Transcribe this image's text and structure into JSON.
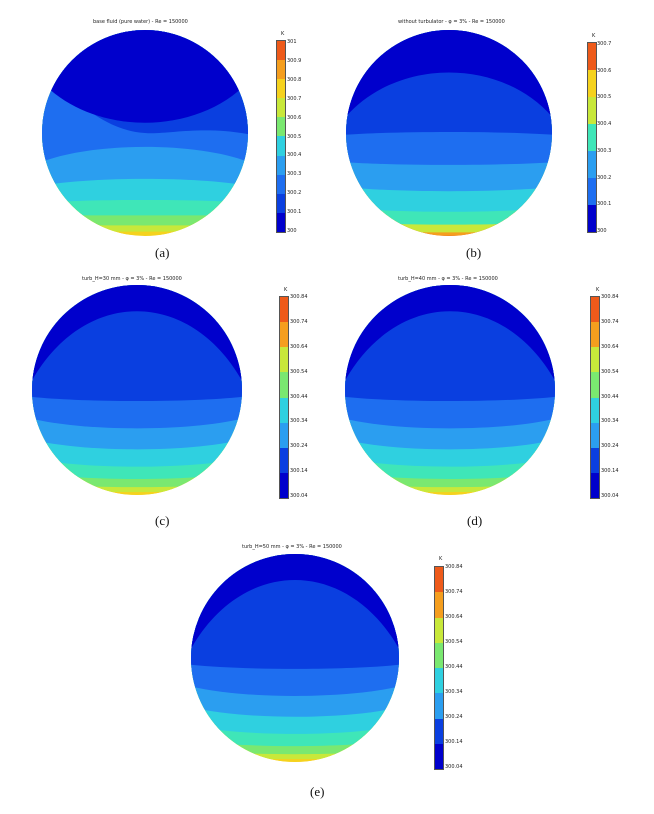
{
  "panels": [
    {
      "title": "base fluid (pure water)  -  Re = 150000",
      "caption": "(a)",
      "unit": "K",
      "ticks": [
        "301",
        "300.9",
        "300.8",
        "300.7",
        "300.6",
        "300.5",
        "300.4",
        "300.3",
        "300.2",
        "300.1",
        "300"
      ]
    },
    {
      "title": "without turbulator  -  φ = 3%  -  Re = 150000",
      "caption": "(b)",
      "unit": "K",
      "ticks": [
        "300.7",
        "300.6",
        "300.5",
        "300.4",
        "300.3",
        "300.2",
        "300.1",
        "300"
      ]
    },
    {
      "title": "turb_H=30 mm  -  φ = 3%  -  Re = 150000",
      "caption": "(c)",
      "unit": "K",
      "ticks": [
        "300.84",
        "300.74",
        "300.64",
        "300.54",
        "300.44",
        "300.34",
        "300.24",
        "300.14",
        "300.04"
      ]
    },
    {
      "title": "turb_H=40 mm  -  φ = 3%  -  Re = 150000",
      "caption": "(d)",
      "unit": "K",
      "ticks": [
        "300.84",
        "300.74",
        "300.64",
        "300.54",
        "300.44",
        "300.34",
        "300.24",
        "300.14",
        "300.04"
      ]
    },
    {
      "title": "turb_H=50 mm  -  φ = 3%  -  Re = 150000",
      "caption": "(e)",
      "unit": "K",
      "ticks": [
        "300.84",
        "300.74",
        "300.64",
        "300.54",
        "300.44",
        "300.34",
        "300.24",
        "300.14",
        "300.04"
      ]
    }
  ],
  "colors": {
    "levels": [
      "#0000cc",
      "#0a3fe0",
      "#1e6ef0",
      "#2b9ef0",
      "#2fd0e0",
      "#3fe6b8",
      "#7ae870",
      "#c8e83a",
      "#f5d21e",
      "#f59e1e",
      "#ee5a1a"
    ]
  }
}
